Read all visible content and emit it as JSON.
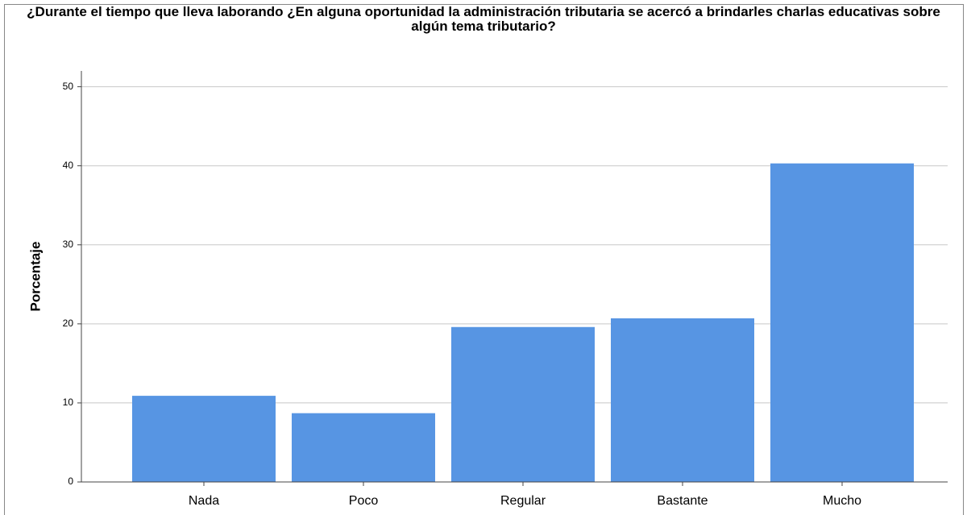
{
  "chart_data": {
    "type": "bar",
    "title": "¿Durante el tiempo que lleva laborando ¿En alguna oportunidad la administración tributaria se acercó a brindarles charlas educativas sobre algún tema tributario?",
    "y_label": "Porcentaje",
    "categories": [
      "Nada",
      "Poco",
      "Regular",
      "Bastante",
      "Mucho"
    ],
    "values": [
      10.9,
      8.7,
      19.6,
      20.7,
      40.3
    ],
    "color": "#5795e3",
    "ylim": [
      0,
      52
    ],
    "yticks": [
      0,
      10,
      20,
      30,
      40,
      50
    ],
    "grid": true
  }
}
